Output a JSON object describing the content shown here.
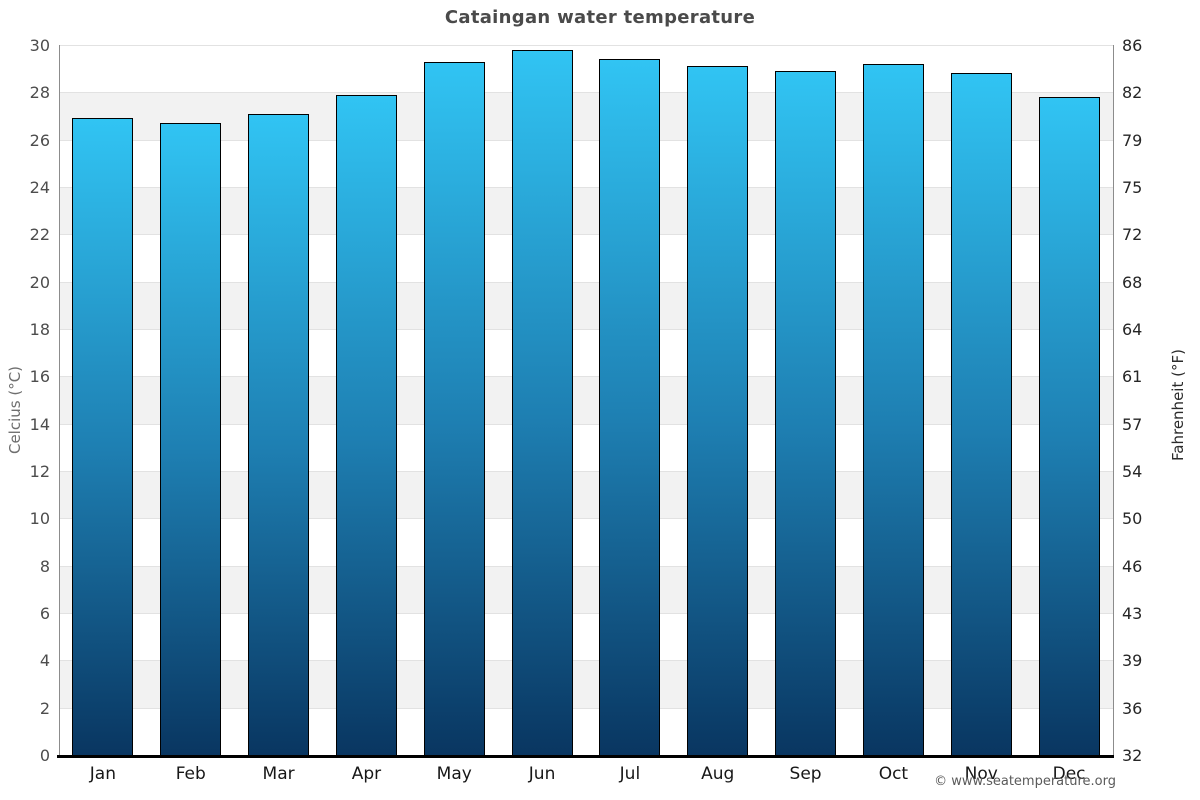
{
  "chart_data": {
    "type": "bar",
    "title": "Cataingan water temperature",
    "categories": [
      "Jan",
      "Feb",
      "Mar",
      "Apr",
      "May",
      "Jun",
      "Jul",
      "Aug",
      "Sep",
      "Oct",
      "Nov",
      "Dec"
    ],
    "values": [
      26.9,
      26.7,
      27.1,
      27.9,
      29.3,
      29.8,
      29.4,
      29.1,
      28.9,
      29.2,
      28.8,
      27.8
    ],
    "ylabel_left": "Celcius (°C)",
    "ylabel_right": "Fahrenheit (°F)",
    "yaxis_left": {
      "min": 0,
      "max": 30,
      "tick_step": 2,
      "ticks": [
        0,
        2,
        4,
        6,
        8,
        10,
        12,
        14,
        16,
        18,
        20,
        22,
        24,
        26,
        28,
        30
      ]
    },
    "yaxis_right": {
      "ticks": [
        "32",
        "36",
        "39",
        "43",
        "46",
        "50",
        "54",
        "57",
        "61",
        "64",
        "68",
        "72",
        "75",
        "79",
        "82",
        "86"
      ]
    },
    "legend": "none",
    "grid": "horizontal gridlines every 2°C with alternating white/#f2f2f2 bands",
    "colors": {
      "bar_gradient_top": "#31c4f3",
      "bar_gradient_mid": "#1e7fb2",
      "bar_gradient_bottom": "#093661",
      "bar_border": "#000000",
      "band_alt": "#f2f2f2",
      "gridline": "#e2e2e2",
      "axis_line": "#8c8c8c",
      "baseline": "#000000",
      "title_text": "#4a4a4a"
    }
  },
  "footer": {
    "credit": "© www.seatemperature.org"
  }
}
